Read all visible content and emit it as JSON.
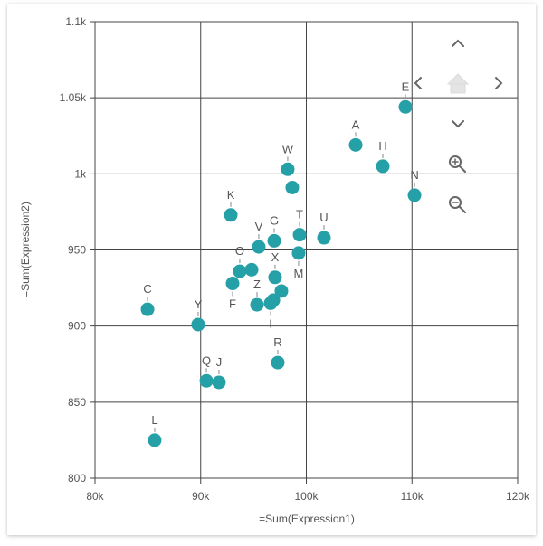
{
  "chart_data": {
    "type": "scatter",
    "xlabel": "=Sum(Expression1)",
    "ylabel": "=Sum(Expression2)",
    "xlim": [
      80000,
      120000
    ],
    "ylim": [
      800,
      1100
    ],
    "xticks": [
      {
        "v": 80000,
        "label": "80k"
      },
      {
        "v": 90000,
        "label": "90k"
      },
      {
        "v": 100000,
        "label": "100k"
      },
      {
        "v": 110000,
        "label": "110k"
      },
      {
        "v": 120000,
        "label": "120k"
      }
    ],
    "yticks": [
      {
        "v": 800,
        "label": "800"
      },
      {
        "v": 850,
        "label": "850"
      },
      {
        "v": 900,
        "label": "900"
      },
      {
        "v": 950,
        "label": "950"
      },
      {
        "v": 1000,
        "label": "1k"
      },
      {
        "v": 1050,
        "label": "1.05k"
      },
      {
        "v": 1100,
        "label": "1.1k"
      }
    ],
    "grid": true,
    "point_color": "#26a0a7",
    "points": [
      {
        "label": "A",
        "x": 104670,
        "y": 1019,
        "pos": "above"
      },
      {
        "label": "E",
        "x": 109380,
        "y": 1044,
        "pos": "above"
      },
      {
        "label": "H",
        "x": 107240,
        "y": 1005,
        "pos": "above"
      },
      {
        "label": "N",
        "x": 110240,
        "y": 986,
        "pos": "above"
      },
      {
        "label": "W",
        "x": 98240,
        "y": 1003,
        "pos": "above"
      },
      {
        "label": "",
        "x": 98670,
        "y": 991
      },
      {
        "label": "K",
        "x": 92850,
        "y": 973,
        "pos": "above"
      },
      {
        "label": "T",
        "x": 99360,
        "y": 960,
        "pos": "above"
      },
      {
        "label": "U",
        "x": 101670,
        "y": 958,
        "pos": "above"
      },
      {
        "label": "G",
        "x": 96960,
        "y": 956,
        "pos": "above"
      },
      {
        "label": "V",
        "x": 95500,
        "y": 952,
        "pos": "above"
      },
      {
        "label": "M",
        "x": 99270,
        "y": 948,
        "pos": "below"
      },
      {
        "label": "O",
        "x": 93700,
        "y": 936,
        "pos": "above"
      },
      {
        "label": "",
        "x": 94820,
        "y": 937
      },
      {
        "label": "X",
        "x": 97040,
        "y": 932,
        "pos": "above"
      },
      {
        "label": "F",
        "x": 93020,
        "y": 928,
        "pos": "below"
      },
      {
        "label": "",
        "x": 97640,
        "y": 923
      },
      {
        "label": "Z",
        "x": 95330,
        "y": 914,
        "pos": "above"
      },
      {
        "label": "",
        "x": 96880,
        "y": 917
      },
      {
        "label": "I",
        "x": 96620,
        "y": 915,
        "pos": "below"
      },
      {
        "label": "C",
        "x": 84970,
        "y": 911,
        "pos": "above"
      },
      {
        "label": "Y",
        "x": 89760,
        "y": 901,
        "pos": "above"
      },
      {
        "label": "R",
        "x": 97300,
        "y": 876,
        "pos": "above"
      },
      {
        "label": "Q",
        "x": 90540,
        "y": 864,
        "pos": "above"
      },
      {
        "label": "J",
        "x": 91730,
        "y": 863,
        "pos": "above"
      },
      {
        "label": "L",
        "x": 85650,
        "y": 825,
        "pos": "above"
      }
    ]
  },
  "controls": [
    "pan-up-icon",
    "pan-left-icon",
    "home-icon",
    "pan-right-icon",
    "pan-down-icon",
    "zoom-in-icon",
    "zoom-out-icon"
  ]
}
